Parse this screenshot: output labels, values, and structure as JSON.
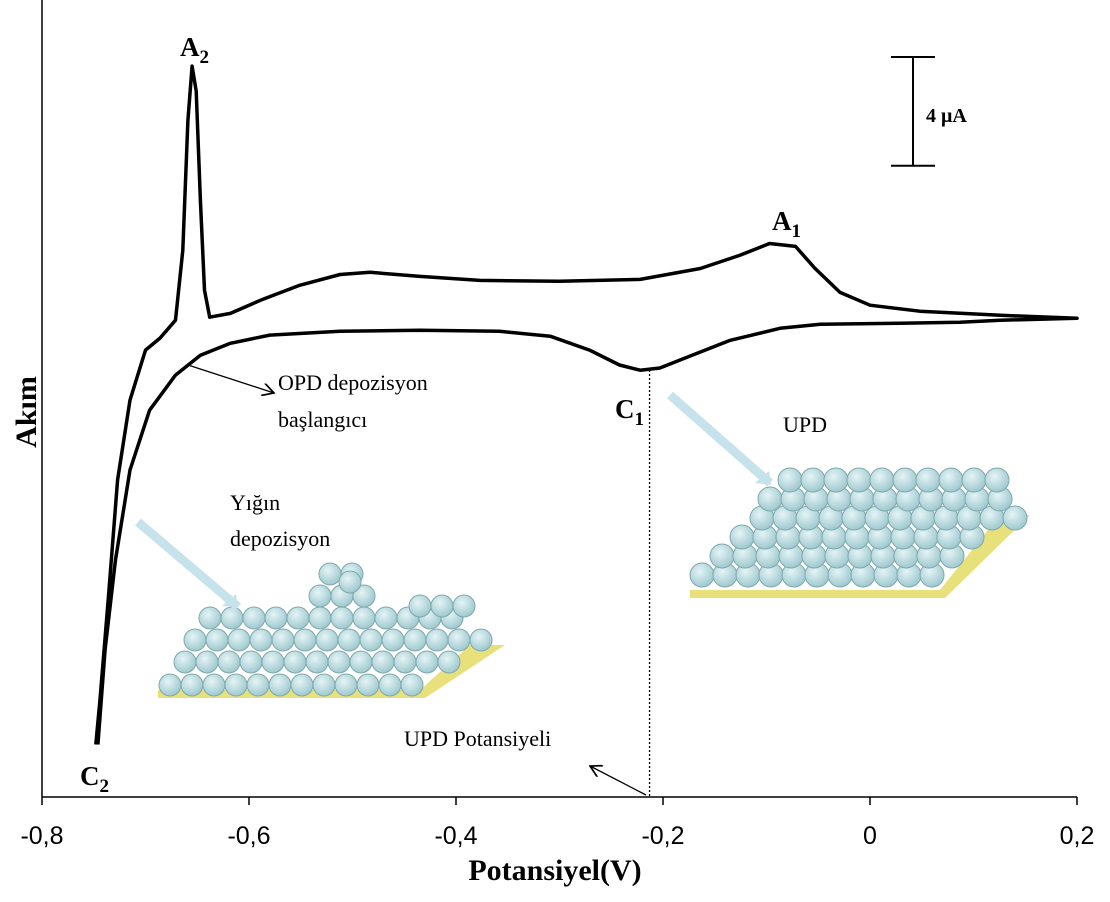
{
  "chart_data": {
    "type": "line",
    "xlabel": "Potansiyel(V)",
    "ylabel": "Akım",
    "xlim": [
      -0.8,
      0.2
    ],
    "ylim": [
      -17.6,
      11.7
    ],
    "xticks": [
      {
        "value": -0.8,
        "label": "-0,8"
      },
      {
        "value": -0.6,
        "label": "-0,6"
      },
      {
        "value": -0.4,
        "label": "-0,4"
      },
      {
        "value": -0.2,
        "label": "-0,2"
      },
      0,
      {
        "value": 0.2,
        "label": "0,2"
      }
    ],
    "color": "#000000",
    "x": [
      -0.748,
      -0.744,
      -0.736,
      -0.727,
      -0.715,
      -0.7,
      -0.686,
      -0.671,
      -0.664,
      -0.659,
      -0.655,
      -0.651,
      -0.647,
      -0.643,
      -0.638,
      -0.618,
      -0.589,
      -0.551,
      -0.512,
      -0.483,
      -0.435,
      -0.377,
      -0.3,
      -0.222,
      -0.164,
      -0.126,
      -0.097,
      -0.072,
      -0.053,
      -0.029,
      0,
      0.048,
      0.126,
      0.2,
      0.126,
      0.087,
      0.029,
      -0.048,
      -0.087,
      -0.135,
      -0.174,
      -0.203,
      -0.222,
      -0.242,
      -0.271,
      -0.309,
      -0.358,
      -0.435,
      -0.512,
      -0.58,
      -0.618,
      -0.647,
      -0.671,
      -0.696,
      -0.715,
      -0.729,
      -0.739,
      -0.746
    ],
    "values": [
      -15.67,
      -14.02,
      -10.35,
      -5.94,
      -3.01,
      -1.17,
      -0.73,
      -0.07,
      2.5,
      7.27,
      9.27,
      8.35,
      4.33,
      1.03,
      0.04,
      0.18,
      0.66,
      1.21,
      1.61,
      1.69,
      1.54,
      1.39,
      1.36,
      1.43,
      1.83,
      2.31,
      2.75,
      2.64,
      1.83,
      0.95,
      0.48,
      0.26,
      0.11,
      0,
      -0.07,
      -0.15,
      -0.18,
      -0.22,
      -0.37,
      -0.81,
      -1.39,
      -1.83,
      -1.91,
      -1.72,
      -1.17,
      -0.66,
      -0.48,
      -0.44,
      -0.48,
      -0.62,
      -0.92,
      -1.36,
      -2.09,
      -3.38,
      -5.58,
      -8.88,
      -12.18,
      -15.67
    ],
    "scale_bar": {
      "value": 4,
      "label": "4 μA"
    },
    "upd_potential": -0.213,
    "peaks": [
      {
        "label": "A",
        "sub": "2"
      },
      {
        "label": "A",
        "sub": "1"
      },
      {
        "label": "C",
        "sub": "1"
      },
      {
        "label": "C",
        "sub": "2"
      }
    ],
    "annotations": [
      "OPD depozisyon",
      "başlangıcı",
      "UPD",
      "Yığın",
      "depozisyon",
      "UPD Potansiyeli"
    ]
  }
}
